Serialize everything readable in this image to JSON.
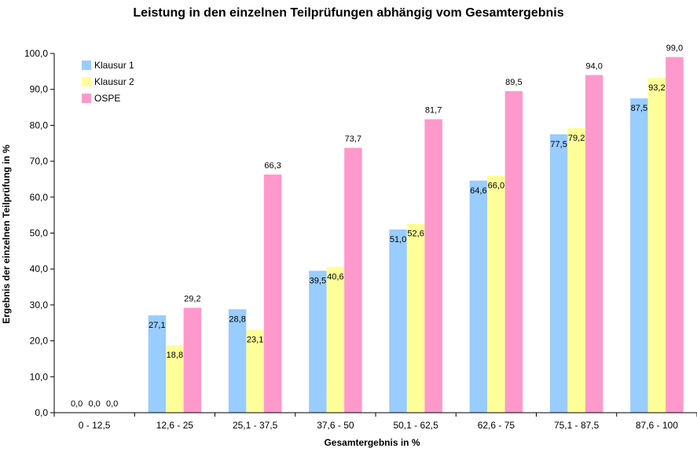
{
  "chart_data": {
    "type": "bar",
    "title": "Leistung in den einzelnen Teilprüfungen abhängig vom Gesamtergebnis",
    "xlabel": "Gesamtergebnis in %",
    "ylabel": "Ergebnis der einzelnen Teilprüfung in %",
    "ylim": [
      0,
      100
    ],
    "yticks": [
      "0,0",
      "10,0",
      "20,0",
      "30,0",
      "40,0",
      "50,0",
      "60,0",
      "70,0",
      "80,0",
      "90,0",
      "100,0"
    ],
    "categories": [
      "0 - 12,5",
      "12,6 - 25",
      "25,1 - 37,5",
      "37,6 - 50",
      "50,1 - 62,5",
      "62,6 - 75",
      "75,1 - 87,5",
      "87,6 - 100"
    ],
    "series": [
      {
        "name": "Klausur 1",
        "color": "#99ccff",
        "values": [
          0,
          27.1,
          28.8,
          39.5,
          51.0,
          64.6,
          77.5,
          87.5
        ],
        "labels": [
          "0,0",
          "27,1",
          "28,8",
          "39,5",
          "51,0",
          "64,6",
          "77,5",
          "87,5"
        ]
      },
      {
        "name": "Klausur 2",
        "color": "#ffff99",
        "values": [
          0,
          18.8,
          23.1,
          40.6,
          52.6,
          66.0,
          79.2,
          93.2
        ],
        "labels": [
          "0,0",
          "18,8",
          "23,1",
          "40,6",
          "52,6",
          "66,0",
          "79,2",
          "93,2"
        ]
      },
      {
        "name": "OSPE",
        "color": "#ff99cc",
        "values": [
          0,
          29.2,
          66.3,
          73.7,
          81.7,
          89.5,
          94.0,
          99.0
        ],
        "labels": [
          "0,0",
          "29,2",
          "66,3",
          "73,7",
          "81,7",
          "89,5",
          "94,0",
          "99,0"
        ]
      }
    ],
    "legend_position": "top-left",
    "grid": false
  }
}
